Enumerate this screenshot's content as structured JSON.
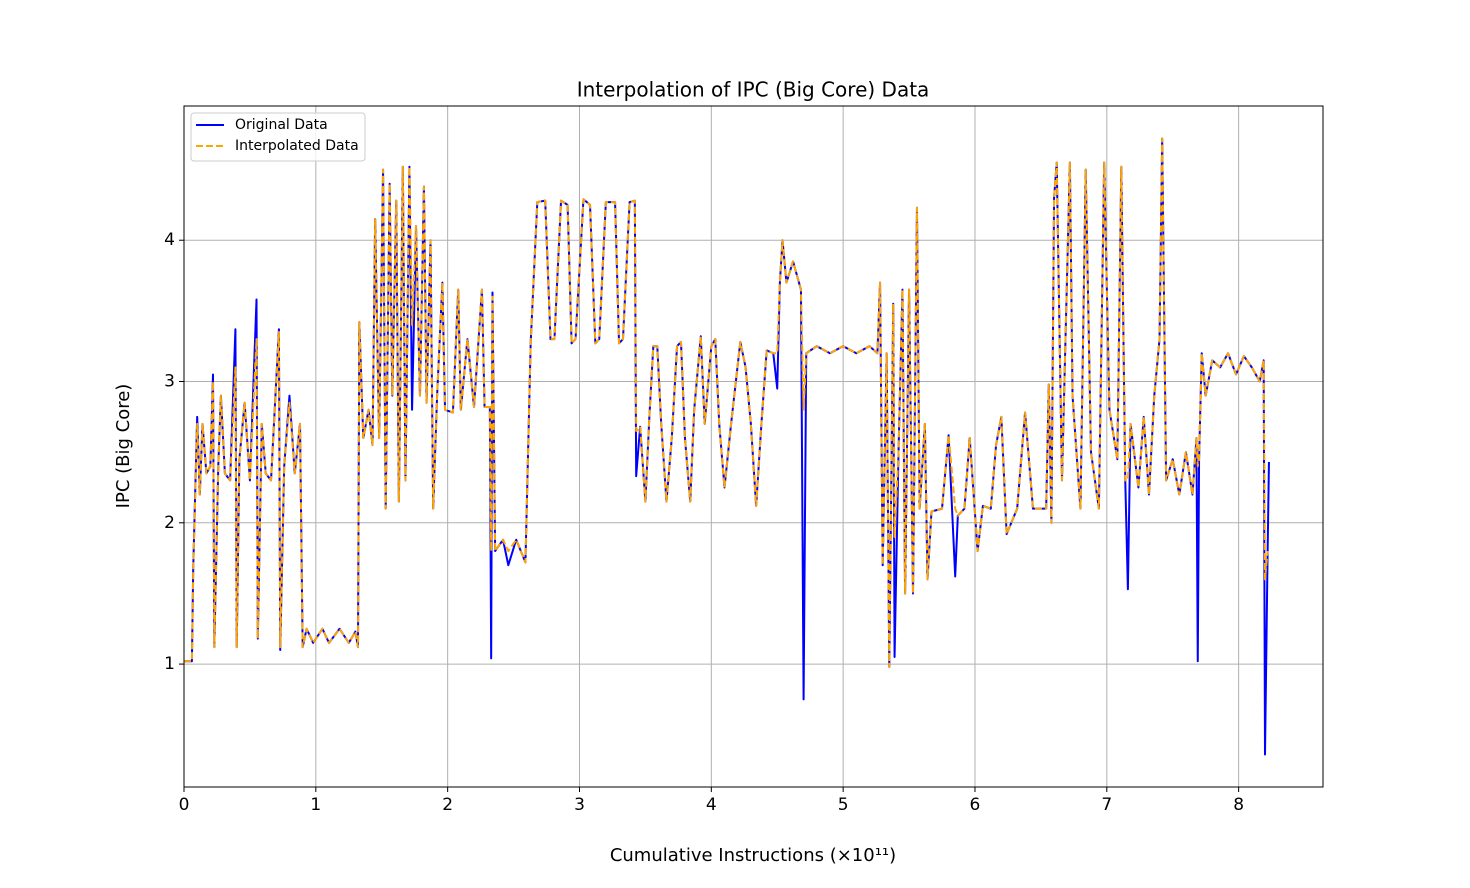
{
  "chart_data": {
    "type": "line",
    "title": "Interpolation of IPC (Big Core) Data",
    "x_label": "Cumulative Instructions (×10¹¹)",
    "y_label": "IPC (Big Core)",
    "xlim": [
      0,
      8.64
    ],
    "ylim": [
      0.13,
      4.95
    ],
    "xticks": [
      0,
      1,
      2,
      3,
      4,
      5,
      6,
      7,
      8
    ],
    "yticks": [
      1,
      2,
      3,
      4
    ],
    "grid": true,
    "legend": "upper left",
    "x": [
      0,
      0.06,
      0.07,
      0.1,
      0.12,
      0.14,
      0.17,
      0.2,
      0.22,
      0.23,
      0.26,
      0.28,
      0.31,
      0.35,
      0.39,
      0.4,
      0.42,
      0.46,
      0.5,
      0.55,
      0.56,
      0.59,
      0.62,
      0.66,
      0.72,
      0.73,
      0.76,
      0.8,
      0.84,
      0.88,
      0.9,
      0.93,
      0.98,
      1.05,
      1.1,
      1.18,
      1.25,
      1.3,
      1.32,
      1.33,
      1.36,
      1.4,
      1.43,
      1.45,
      1.48,
      1.51,
      1.53,
      1.56,
      1.58,
      1.61,
      1.63,
      1.66,
      1.68,
      1.71,
      1.73,
      1.76,
      1.79,
      1.82,
      1.84,
      1.87,
      1.89,
      1.92,
      1.96,
      1.98,
      2.04,
      2.08,
      2.1,
      2.15,
      2.2,
      2.26,
      2.28,
      2.32,
      2.33,
      2.34,
      2.36,
      2.42,
      2.46,
      2.52,
      2.59,
      2.63,
      2.68,
      2.74,
      2.78,
      2.81,
      2.86,
      2.91,
      2.94,
      2.97,
      3.03,
      3.08,
      3.12,
      3.15,
      3.2,
      3.27,
      3.3,
      3.33,
      3.38,
      3.42,
      3.43,
      3.46,
      3.5,
      3.53,
      3.56,
      3.59,
      3.62,
      3.66,
      3.7,
      3.74,
      3.77,
      3.8,
      3.84,
      3.87,
      3.92,
      3.95,
      4.0,
      4.03,
      4.06,
      4.1,
      4.15,
      4.22,
      4.26,
      4.3,
      4.34,
      4.38,
      4.42,
      4.47,
      4.5,
      4.52,
      4.54,
      4.57,
      4.62,
      4.68,
      4.7,
      4.72,
      4.8,
      4.9,
      5.0,
      5.1,
      5.2,
      5.26,
      5.28,
      5.3,
      5.33,
      5.35,
      5.38,
      5.39,
      5.42,
      5.45,
      5.47,
      5.5,
      5.53,
      5.56,
      5.58,
      5.62,
      5.64,
      5.67,
      5.75,
      5.8,
      5.85,
      5.87,
      5.92,
      5.96,
      6.02,
      6.06,
      6.12,
      6.16,
      6.2,
      6.24,
      6.32,
      6.38,
      6.44,
      6.54,
      6.56,
      6.58,
      6.6,
      6.62,
      6.66,
      6.72,
      6.74,
      6.8,
      6.84,
      6.88,
      6.94,
      6.98,
      7.02,
      7.08,
      7.11,
      7.14,
      7.16,
      7.18,
      7.24,
      7.28,
      7.32,
      7.36,
      7.4,
      7.42,
      7.45,
      7.5,
      7.55,
      7.6,
      7.65,
      7.68,
      7.69,
      7.7,
      7.72,
      7.75,
      7.8,
      7.86,
      7.92,
      7.98,
      8.04,
      8.1,
      8.16,
      8.19,
      8.2,
      8.22,
      8.23
    ],
    "series": [
      {
        "name": "Original Data",
        "color": "#0000ff",
        "linestyle": "solid",
        "values": [
          1.02,
          1.02,
          1.68,
          2.75,
          2.2,
          2.7,
          2.35,
          2.4,
          3.05,
          1.12,
          2.4,
          2.9,
          2.35,
          2.3,
          3.37,
          1.12,
          2.45,
          2.85,
          2.3,
          3.58,
          1.18,
          2.7,
          2.35,
          2.3,
          3.37,
          1.1,
          2.4,
          2.9,
          2.35,
          2.7,
          1.12,
          1.25,
          1.15,
          1.25,
          1.15,
          1.25,
          1.15,
          1.23,
          1.12,
          3.42,
          2.6,
          2.8,
          2.55,
          4.15,
          2.6,
          4.5,
          2.1,
          4.4,
          2.9,
          4.28,
          2.15,
          4.52,
          2.3,
          4.52,
          2.8,
          4.1,
          2.9,
          4.38,
          2.85,
          4.0,
          2.1,
          2.9,
          3.7,
          2.8,
          2.78,
          3.65,
          2.8,
          3.3,
          2.82,
          3.65,
          2.82,
          2.82,
          1.04,
          3.63,
          1.8,
          1.88,
          1.7,
          1.88,
          1.72,
          3.28,
          4.27,
          4.28,
          3.3,
          3.3,
          4.28,
          4.25,
          3.27,
          3.3,
          4.29,
          4.25,
          3.27,
          3.3,
          4.27,
          4.27,
          3.27,
          3.3,
          4.27,
          4.28,
          2.33,
          2.68,
          2.15,
          2.75,
          3.25,
          3.25,
          2.7,
          2.15,
          2.6,
          3.25,
          3.28,
          2.6,
          2.15,
          2.8,
          3.32,
          2.7,
          3.25,
          3.3,
          2.7,
          2.25,
          2.7,
          3.28,
          3.1,
          2.7,
          2.12,
          2.7,
          3.22,
          3.2,
          2.95,
          3.7,
          4.0,
          3.7,
          3.85,
          3.65,
          0.75,
          3.2,
          3.25,
          3.2,
          3.25,
          3.2,
          3.25,
          3.2,
          3.7,
          1.7,
          3.2,
          0.98,
          3.55,
          1.05,
          2.5,
          3.65,
          1.5,
          3.65,
          1.5,
          4.23,
          2.1,
          2.7,
          1.6,
          2.08,
          2.1,
          2.62,
          1.62,
          2.05,
          2.1,
          2.6,
          1.8,
          2.12,
          2.1,
          2.55,
          2.75,
          1.92,
          2.1,
          2.78,
          2.1,
          2.1,
          2.98,
          2.0,
          4.3,
          4.55,
          2.3,
          4.55,
          2.9,
          2.1,
          4.5,
          2.5,
          2.1,
          4.55,
          2.8,
          2.45,
          4.52,
          2.3,
          1.53,
          2.7,
          2.25,
          2.75,
          2.2,
          2.9,
          3.3,
          4.72,
          2.3,
          2.45,
          2.2,
          2.5,
          2.2,
          2.6,
          1.02,
          2.45,
          3.2,
          2.9,
          3.15,
          3.1,
          3.2,
          3.05,
          3.18,
          3.1,
          3.0,
          3.15,
          0.36,
          1.8,
          2.43
        ]
      },
      {
        "name": "Interpolated Data",
        "color": "#ffa500",
        "linestyle": "dashed",
        "values": [
          1.02,
          1.02,
          1.65,
          2.7,
          2.2,
          2.7,
          2.35,
          2.4,
          3.0,
          1.12,
          2.4,
          2.9,
          2.35,
          2.3,
          3.1,
          1.12,
          2.45,
          2.85,
          2.3,
          3.3,
          1.18,
          2.7,
          2.35,
          2.3,
          3.35,
          1.12,
          2.4,
          2.85,
          2.35,
          2.7,
          1.12,
          1.25,
          1.15,
          1.25,
          1.15,
          1.25,
          1.15,
          1.23,
          1.12,
          3.42,
          2.6,
          2.8,
          2.55,
          4.15,
          2.6,
          4.5,
          2.1,
          4.4,
          2.9,
          4.28,
          2.15,
          4.52,
          2.3,
          4.52,
          3.4,
          4.1,
          2.9,
          4.38,
          2.85,
          4.0,
          2.1,
          2.9,
          3.7,
          2.8,
          2.78,
          3.65,
          2.8,
          3.3,
          2.82,
          3.65,
          2.82,
          2.82,
          1.8,
          3.6,
          1.8,
          1.88,
          1.8,
          1.88,
          1.72,
          3.28,
          4.27,
          4.28,
          3.3,
          3.3,
          4.28,
          4.25,
          3.27,
          3.3,
          4.29,
          4.25,
          3.27,
          3.3,
          4.27,
          4.27,
          3.27,
          3.3,
          4.27,
          4.28,
          2.65,
          2.68,
          2.15,
          2.75,
          3.25,
          3.25,
          2.7,
          2.15,
          2.6,
          3.25,
          3.28,
          2.6,
          2.15,
          2.8,
          3.32,
          2.7,
          3.25,
          3.3,
          2.7,
          2.25,
          2.7,
          3.28,
          3.1,
          2.7,
          2.12,
          2.7,
          3.22,
          3.2,
          3.2,
          3.7,
          4.0,
          3.7,
          3.85,
          3.65,
          2.8,
          3.2,
          3.25,
          3.2,
          3.25,
          3.2,
          3.25,
          3.2,
          3.7,
          1.7,
          3.2,
          0.98,
          3.55,
          1.9,
          2.5,
          3.65,
          1.5,
          3.65,
          1.5,
          4.23,
          2.1,
          2.7,
          1.6,
          2.08,
          2.1,
          2.62,
          2.1,
          2.05,
          2.1,
          2.6,
          1.8,
          2.12,
          2.1,
          2.55,
          2.75,
          1.92,
          2.1,
          2.78,
          2.1,
          2.1,
          2.98,
          2.0,
          4.3,
          4.55,
          2.3,
          4.55,
          2.9,
          2.1,
          4.5,
          2.5,
          2.1,
          4.55,
          2.8,
          2.45,
          4.52,
          2.3,
          2.3,
          2.7,
          2.25,
          2.75,
          2.2,
          2.9,
          3.3,
          4.72,
          2.3,
          2.45,
          2.2,
          2.5,
          2.2,
          2.6,
          2.4,
          2.45,
          3.2,
          2.9,
          3.15,
          3.1,
          3.2,
          3.05,
          3.18,
          3.1,
          3.0,
          3.15,
          1.6,
          1.8,
          null
        ]
      }
    ]
  }
}
